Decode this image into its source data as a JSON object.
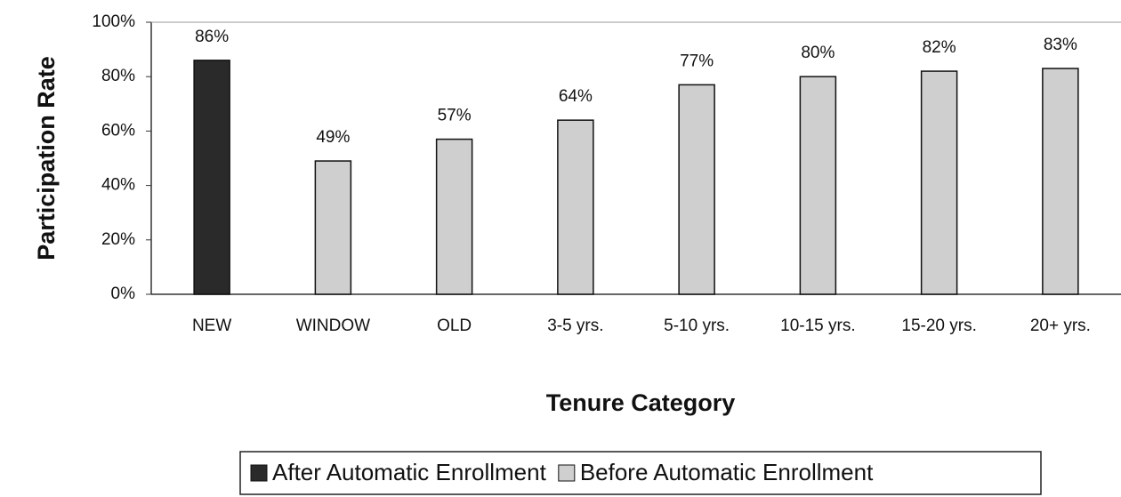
{
  "chart_data": {
    "type": "bar",
    "x_label": "Tenure Category",
    "y_label": "Participation Rate",
    "categories": [
      "NEW",
      "WINDOW",
      "OLD",
      "3-5 yrs.",
      "5-10 yrs.",
      "10-15 yrs.",
      "15-20 yrs.",
      "20+ yrs."
    ],
    "series": [
      {
        "name": "After Automatic Enrollment",
        "color": "#2a2a2a",
        "values": [
          86,
          null,
          null,
          null,
          null,
          null,
          null,
          null
        ],
        "value_labels": [
          "86%",
          null,
          null,
          null,
          null,
          null,
          null,
          null
        ]
      },
      {
        "name": "Before Automatic Enrollment",
        "color": "#cfcfcf",
        "values": [
          null,
          49,
          57,
          64,
          77,
          80,
          82,
          83
        ],
        "value_labels": [
          null,
          "49%",
          "57%",
          "64%",
          "77%",
          "80%",
          "82%",
          "83%"
        ]
      }
    ],
    "ylim": [
      0,
      100
    ],
    "yticks": [
      {
        "value": 0,
        "label": "0%"
      },
      {
        "value": 20,
        "label": "20%"
      },
      {
        "value": 40,
        "label": "40%"
      },
      {
        "value": 60,
        "label": "60%"
      },
      {
        "value": 80,
        "label": "80%"
      },
      {
        "value": 100,
        "label": "100%"
      }
    ],
    "grid": false,
    "legend": "bottom"
  }
}
